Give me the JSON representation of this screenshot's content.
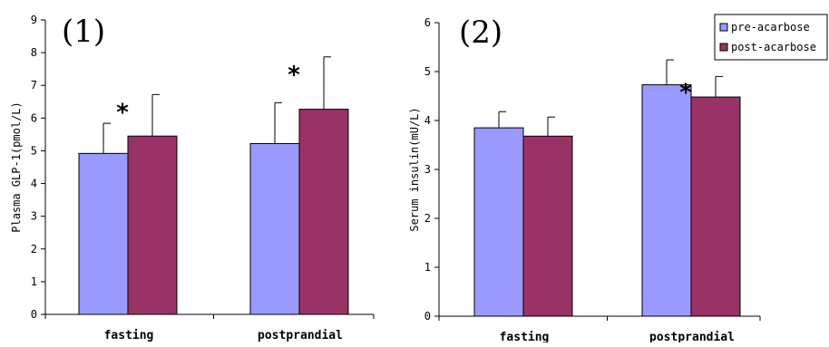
{
  "chart_data": [
    {
      "type": "bar",
      "panel_label": "(1)",
      "ylabel": "Plasma GLP-1(pmol/L)",
      "ylim": [
        0,
        9
      ],
      "yticks": [
        "0",
        "1",
        "2",
        "3",
        "4",
        "5",
        "6",
        "7",
        "8",
        "9"
      ],
      "categories": [
        "fasting",
        "postprandial"
      ],
      "series": [
        {
          "name": "pre-acarbose",
          "values": [
            4.92,
            5.22
          ],
          "errors": [
            0.92,
            1.25
          ],
          "color": "#9999ff"
        },
        {
          "name": "post-acarbose",
          "values": [
            5.45,
            6.27
          ],
          "errors": [
            1.27,
            1.6
          ],
          "color": "#993366"
        }
      ],
      "annotations": [
        {
          "text": "*",
          "category": 0
        },
        {
          "text": "*",
          "category": 1
        }
      ],
      "grid": false
    },
    {
      "type": "bar",
      "panel_label": "(2)",
      "ylabel": "Serum insulin(mU/L)",
      "ylim": [
        0,
        6
      ],
      "yticks": [
        "0",
        "1",
        "2",
        "3",
        "4",
        "5",
        "6"
      ],
      "categories": [
        "fasting",
        "postprandial"
      ],
      "series": [
        {
          "name": "pre-acarbose",
          "values": [
            3.85,
            4.73
          ],
          "errors": [
            0.33,
            0.51
          ],
          "color": "#9999ff"
        },
        {
          "name": "post-acarbose",
          "values": [
            3.68,
            4.48
          ],
          "errors": [
            0.39,
            0.42
          ],
          "color": "#993366"
        }
      ],
      "annotations": [
        {
          "text": "*",
          "category": 1
        }
      ],
      "legend": {
        "placement": "top-right",
        "entries": [
          "pre-acarbose",
          "post-acarbose"
        ]
      },
      "grid": false
    }
  ]
}
